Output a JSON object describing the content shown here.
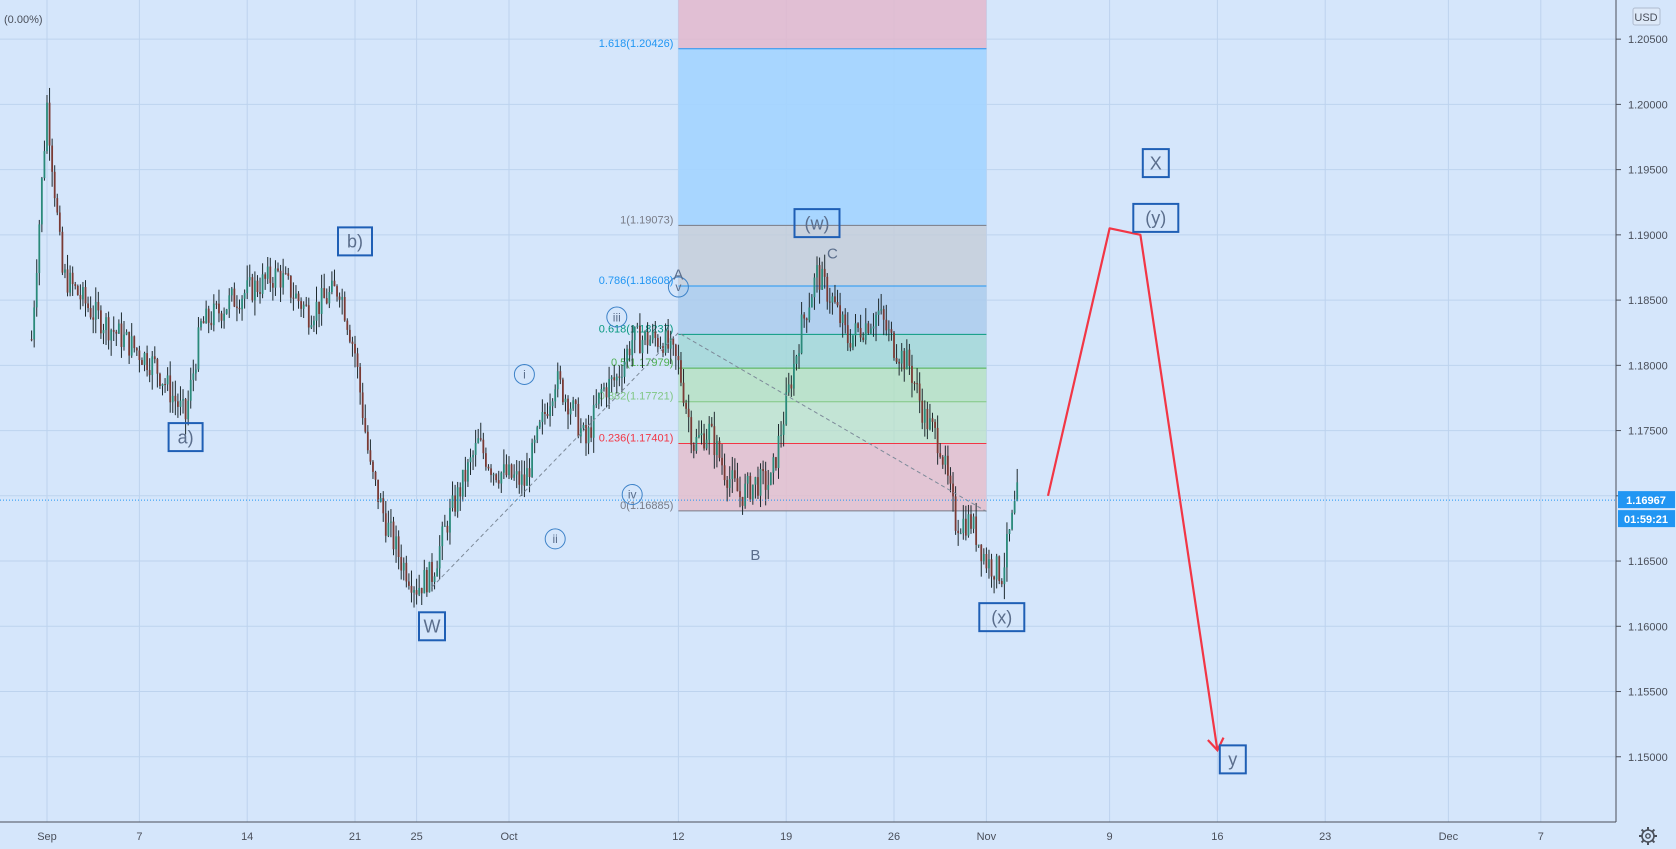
{
  "header": {
    "change": "(0.00%)"
  },
  "price_axis": {
    "currency": "USD",
    "current_price": "1.16967",
    "countdown": "01:59:21",
    "price_tag_color": "#2196f3"
  },
  "settings_icon": "gear-icon",
  "chart_data": {
    "type": "candlestick",
    "symbol_currency": "USD",
    "ylim": [
      1.145,
      1.208
    ],
    "grid": true,
    "y_ticks": [
      "1.20500",
      "1.20000",
      "1.19500",
      "1.19000",
      "1.18500",
      "1.18000",
      "1.17500",
      "1.17000",
      "1.16500",
      "1.16000",
      "1.15500",
      "1.15000"
    ],
    "x_ticks": [
      {
        "label": "Sep",
        "date": "2020-09-01"
      },
      {
        "label": "7",
        "date": "2020-09-07"
      },
      {
        "label": "14",
        "date": "2020-09-14"
      },
      {
        "label": "21",
        "date": "2020-09-21"
      },
      {
        "label": "25",
        "date": "2020-09-25"
      },
      {
        "label": "Oct",
        "date": "2020-10-01"
      },
      {
        "label": "12",
        "date": "2020-10-12"
      },
      {
        "label": "19",
        "date": "2020-10-19"
      },
      {
        "label": "26",
        "date": "2020-10-26"
      },
      {
        "label": "Nov",
        "date": "2020-11-01"
      },
      {
        "label": "9",
        "date": "2020-11-09"
      },
      {
        "label": "16",
        "date": "2020-11-16"
      },
      {
        "label": "23",
        "date": "2020-11-23"
      },
      {
        "label": "Dec",
        "date": "2020-12-01"
      },
      {
        "label": "7",
        "date": "2020-12-07"
      }
    ],
    "price_path": [
      [
        "2020-08-31",
        1.182
      ],
      [
        "2020-09-01",
        1.2
      ],
      [
        "2020-09-02",
        1.187
      ],
      [
        "2020-09-04",
        1.184
      ],
      [
        "2020-09-08",
        1.18
      ],
      [
        "2020-09-10",
        1.176
      ],
      [
        "2020-09-11",
        1.183
      ],
      [
        "2020-09-13",
        1.185
      ],
      [
        "2020-09-16",
        1.187
      ],
      [
        "2020-09-18",
        1.184
      ],
      [
        "2020-09-20",
        1.186
      ],
      [
        "2020-09-21",
        1.181
      ],
      [
        "2020-09-22",
        1.172
      ],
      [
        "2020-09-23",
        1.168
      ],
      [
        "2020-09-24",
        1.165
      ],
      [
        "2020-09-25",
        1.163
      ],
      [
        "2020-09-26",
        1.164
      ],
      [
        "2020-09-27",
        1.168
      ],
      [
        "2020-09-29",
        1.174
      ],
      [
        "2020-09-30",
        1.172
      ],
      [
        "2020-10-02",
        1.171
      ],
      [
        "2020-10-04",
        1.179
      ],
      [
        "2020-10-05",
        1.177
      ],
      [
        "2020-10-06",
        1.174
      ],
      [
        "2020-10-07",
        1.178
      ],
      [
        "2020-10-08",
        1.179
      ],
      [
        "2020-10-09",
        1.182
      ],
      [
        "2020-10-11",
        1.182
      ],
      [
        "2020-10-12",
        1.18
      ],
      [
        "2020-10-13",
        1.174
      ],
      [
        "2020-10-14",
        1.175
      ],
      [
        "2020-10-15",
        1.172
      ],
      [
        "2020-10-16",
        1.17
      ],
      [
        "2020-10-17",
        1.171
      ],
      [
        "2020-10-18",
        1.171
      ],
      [
        "2020-10-19",
        1.177
      ],
      [
        "2020-10-20",
        1.183
      ],
      [
        "2020-10-21",
        1.187
      ],
      [
        "2020-10-22",
        1.185
      ],
      [
        "2020-10-23",
        1.182
      ],
      [
        "2020-10-25",
        1.184
      ],
      [
        "2020-10-26",
        1.1815
      ],
      [
        "2020-10-27",
        1.18
      ],
      [
        "2020-10-28",
        1.176
      ],
      [
        "2020-10-29",
        1.174
      ],
      [
        "2020-10-30",
        1.168
      ],
      [
        "2020-10-31",
        1.168
      ],
      [
        "2020-11-01",
        1.165
      ],
      [
        "2020-11-02",
        1.164
      ],
      [
        "2020-11-03",
        1.17
      ]
    ],
    "fibonacci": {
      "from_date": "2020-10-12",
      "to_date": "2020-11-01",
      "levels": [
        {
          "label": "1.618(1.20426)",
          "price": 1.20426,
          "color": "#2196f3"
        },
        {
          "label": "1(1.19073)",
          "price": 1.19073,
          "color": "#787b86"
        },
        {
          "label": "0.786(1.18608)",
          "price": 1.18608,
          "color": "#2196f3"
        },
        {
          "label": "0.618(1.18237)",
          "price": 1.18237,
          "color": "#089981"
        },
        {
          "label": "0.5(1.17979)",
          "price": 1.17979,
          "color": "#4caf50"
        },
        {
          "label": "0.382(1.17721)",
          "price": 1.17721,
          "color": "#81c784"
        },
        {
          "label": "0.236(1.17401)",
          "price": 1.17401,
          "color": "#f23645"
        },
        {
          "label": "0(1.16885)",
          "price": 1.16885,
          "color": "#787b86"
        }
      ]
    },
    "trend_line": [
      [
        "2020-09-26",
        1.163
      ],
      [
        "2020-10-12",
        1.1825
      ],
      [
        "2020-11-01",
        1.1688
      ]
    ],
    "projection": [
      [
        "2020-11-05",
        1.17
      ],
      [
        "2020-11-09",
        1.1905
      ],
      [
        "2020-11-11",
        1.19
      ],
      [
        "2020-11-16",
        1.1505
      ]
    ],
    "wave_labels": [
      {
        "text": "a)",
        "date": "2020-09-10",
        "price": 1.1745,
        "style": "boxed"
      },
      {
        "text": "b)",
        "date": "2020-09-21",
        "price": 1.1895,
        "style": "boxed"
      },
      {
        "text": "W",
        "date": "2020-09-26",
        "price": 1.16,
        "style": "boxed"
      },
      {
        "text": "i",
        "date": "2020-10-02",
        "price": 1.1793,
        "style": "circled"
      },
      {
        "text": "ii",
        "date": "2020-10-04",
        "price": 1.1667,
        "style": "circled"
      },
      {
        "text": "iii",
        "date": "2020-10-08",
        "price": 1.1837,
        "style": "circled"
      },
      {
        "text": "iv",
        "date": "2020-10-09",
        "price": 1.1701,
        "style": "circled"
      },
      {
        "text": "v",
        "date": "2020-10-12",
        "price": 1.186,
        "style": "circled"
      },
      {
        "text": "A",
        "date": "2020-10-12",
        "price": 1.187,
        "style": "plain"
      },
      {
        "text": "B",
        "date": "2020-10-17",
        "price": 1.1655,
        "style": "plain"
      },
      {
        "text": "C",
        "date": "2020-10-22",
        "price": 1.1886,
        "style": "plain"
      },
      {
        "text": "(w)",
        "date": "2020-10-21",
        "price": 1.1909,
        "style": "boxed"
      },
      {
        "text": "(x)",
        "date": "2020-11-02",
        "price": 1.1607,
        "style": "boxed"
      },
      {
        "text": "X",
        "date": "2020-11-12",
        "price": 1.1955,
        "style": "boxed"
      },
      {
        "text": "(y)",
        "date": "2020-11-12",
        "price": 1.1913,
        "style": "boxed"
      },
      {
        "text": "y",
        "date": "2020-11-17",
        "price": 1.1498,
        "style": "boxed"
      }
    ]
  }
}
